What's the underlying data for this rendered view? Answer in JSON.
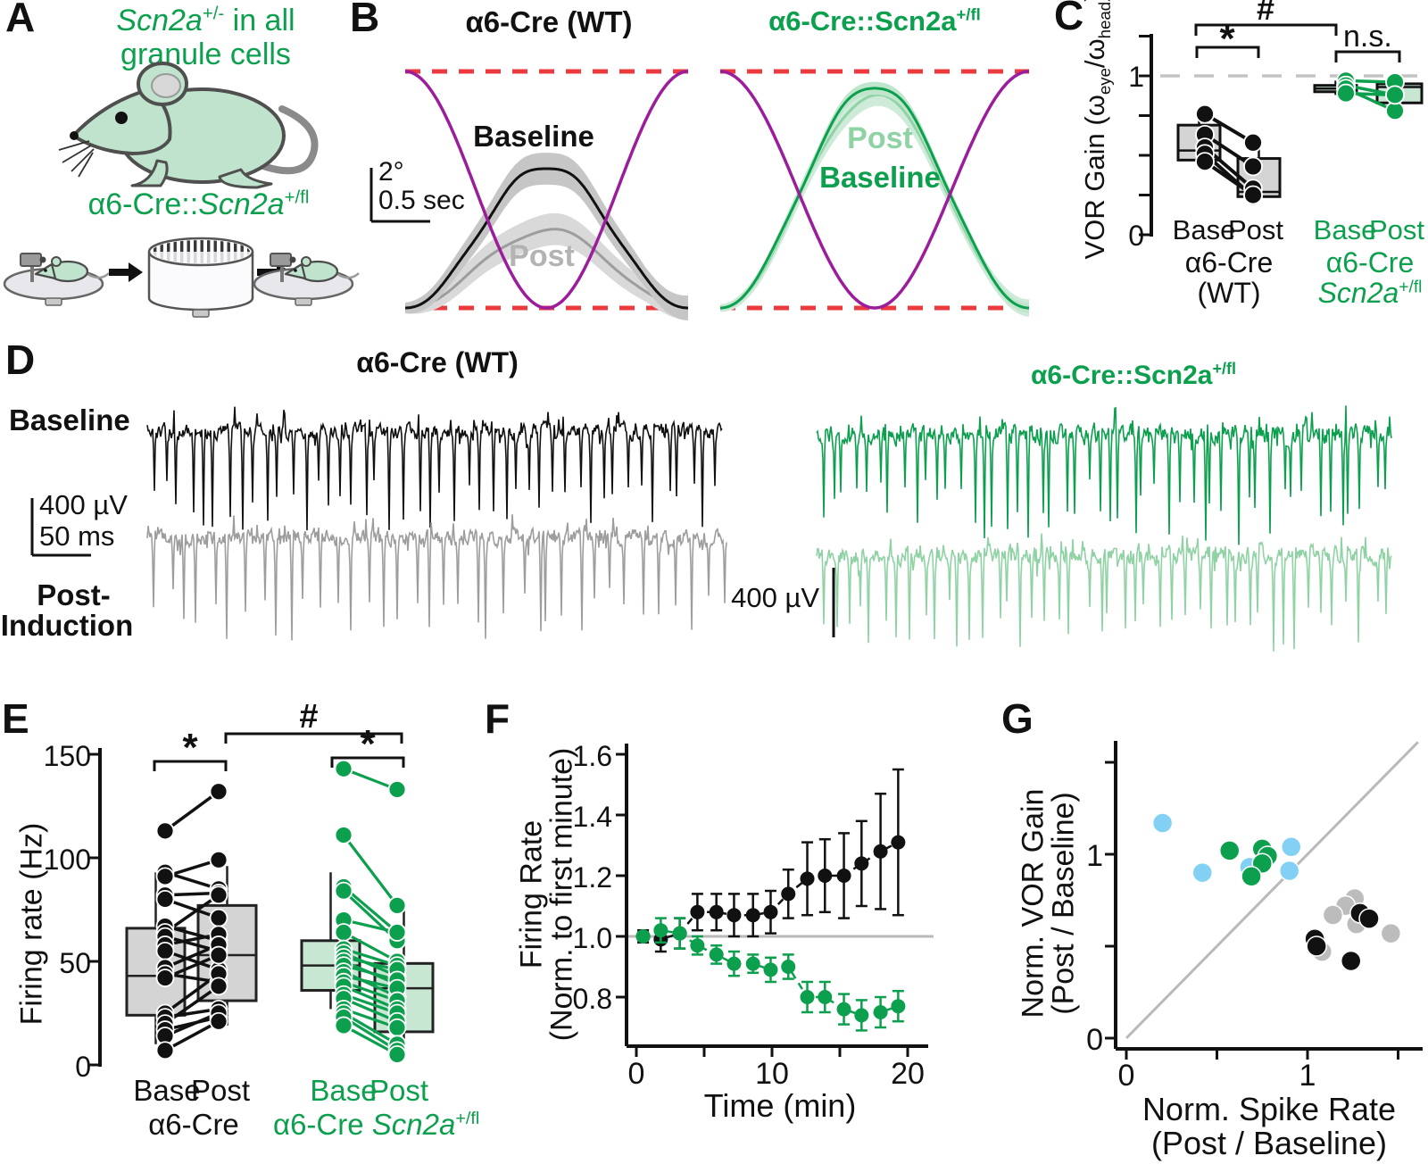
{
  "colors": {
    "green": "#0ca04e",
    "green_light": "#8fd2a4",
    "green_box": "#c7e7d2",
    "black": "#111111",
    "gray_trace": "#9d9d9d",
    "gray_box": "#d4d4d4",
    "gray_dot": "#bcbcbc",
    "purple": "#9c1d9c",
    "red": "#ea3a3e",
    "skyblue": "#82d1f5",
    "ref_gray": "#b9b9b9",
    "dash_gray": "#c3c3c3",
    "post_label_gray": "#b3b3b3"
  },
  "panelA": {
    "label": "A",
    "headline": {
      "gene": "Scn2a",
      "gene_sup": "+/-",
      "rest": " in all",
      "line2": "granule cells"
    },
    "genotype": {
      "pre": "α6-Cre::",
      "gene": "Scn2a",
      "sup": "+/fl"
    }
  },
  "panelB": {
    "label": "B",
    "left_title": "α6-Cre (WT)",
    "right_title_pre": "α6-Cre::Scn2a",
    "right_title_sup": "+/fl",
    "baseline_label": "Baseline",
    "post_label": "Post",
    "right_post_label": "Post",
    "right_baseline_label": "Baseline",
    "scale_y": "2°",
    "scale_x": "0.5 sec"
  },
  "panelC": {
    "label": "C",
    "ylabel_pre": "VOR Gain (ω",
    "ylabel_sub1": "eye",
    "ylabel_mid": "/ω",
    "ylabel_sub2": "head",
    "ylabel_post": ")",
    "ytick_top": "1",
    "ytick_bottom": "0",
    "sig_star": "*",
    "sig_hash": "#",
    "sig_ns": "n.s.",
    "wt_base": "Base",
    "wt_post": "Post",
    "ko_base": "Base",
    "ko_post": "Post",
    "wt_group1": "α6-Cre",
    "wt_group2": "(WT)",
    "ko_group1": "α6-Cre",
    "ko_gene": "Scn2a",
    "ko_sup": "+/fl"
  },
  "panelD": {
    "label": "D",
    "wt_title": "α6-Cre (WT)",
    "ko_title_pre": "α6-Cre::Scn2a",
    "ko_title_sup": "+/fl",
    "row_baseline": "Baseline",
    "row_post1": "Post-",
    "row_post2": "Induction",
    "scale1_v": "400 µV",
    "scale1_h": "50 ms",
    "scale2_v": "400 µV",
    "traces": [
      {
        "name": "wt-baseline",
        "color_key": "black",
        "seed": 7,
        "n_spikes": 46,
        "noise": 7,
        "depth_min": 55,
        "depth_max": 112
      },
      {
        "name": "wt-post",
        "color_key": "gray_trace",
        "seed": 13,
        "n_spikes": 38,
        "noise": 7,
        "depth_min": 55,
        "depth_max": 118
      },
      {
        "name": "ko-baseline",
        "color_key": "green",
        "seed": 21,
        "n_spikes": 50,
        "noise": 9,
        "depth_min": 50,
        "depth_max": 125
      },
      {
        "name": "ko-post",
        "color_key": "green_light",
        "seed": 33,
        "n_spikes": 46,
        "noise": 8,
        "depth_min": 50,
        "depth_max": 108
      }
    ]
  },
  "panelE": {
    "label": "E",
    "ylabel": "Firing rate (Hz)",
    "yticks": [
      "150",
      "100",
      "50",
      "0"
    ],
    "sig_star_wt": "*",
    "sig_hash": "#",
    "sig_star_ko": "*",
    "wt_base": "Base",
    "wt_post": "Post",
    "wt_group": "α6-Cre",
    "ko_base": "Base",
    "ko_post": "Post",
    "ko_group_pre": "α6-Cre ",
    "ko_gene": "Scn2a",
    "ko_sup": "+/fl"
  },
  "panelF": {
    "label": "F",
    "ylabel1": "Firing Rate",
    "ylabel2": "(Norm.  to first minute)",
    "yticks": [
      "1.6",
      "1.4",
      "1.2",
      "1.0",
      "0.8"
    ],
    "xticks": [
      "0",
      "10",
      "20"
    ],
    "xlabel": "Time (min)"
  },
  "panelG": {
    "label": "G",
    "ylabel1": "Norm. VOR Gain",
    "ylabel2": "(Post / Baseline)",
    "ytick_1": "1",
    "ytick_0": "0",
    "xtick_0": "0",
    "xtick_1": "1",
    "xlabel1": "Norm. Spike Rate",
    "xlabel2": "(Post / Baseline)"
  },
  "chart_data": [
    {
      "id": "B_left",
      "panel": "B",
      "type": "line",
      "title": "α6-Cre (WT)",
      "head_trace": {
        "label": "head velocity",
        "color_key": "purple"
      },
      "eye_traces": [
        {
          "label": "Post",
          "rel_amplitude": 0.33,
          "band": 0.05,
          "color_key": "gray_trace",
          "fill": "#d9d9d9"
        },
        {
          "label": "Baseline",
          "rel_amplitude": 0.6,
          "band": 0.05,
          "color_key": "black",
          "fill": "#c6c6c6"
        }
      ],
      "scalebar": {
        "y": "2°",
        "x": "0.5 sec"
      }
    },
    {
      "id": "B_right",
      "panel": "B",
      "type": "line",
      "title": "α6-Cre::Scn2a+/fl",
      "head_trace": {
        "label": "head velocity",
        "color_key": "purple"
      },
      "eye_traces": [
        {
          "label": "Post",
          "rel_amplitude": 0.9,
          "band": 0.035,
          "color_key": "green_light",
          "fill": "#cdebd8"
        },
        {
          "label": "Baseline",
          "rel_amplitude": 0.94,
          "band": 0.02,
          "color_key": "green",
          "fill": "#bfe6cc"
        }
      ]
    },
    {
      "id": "C",
      "panel": "C",
      "type": "paired_box",
      "ylabel": "VOR Gain (ω_eye/ω_head)",
      "yticks": [
        0,
        1
      ],
      "ylim": [
        0,
        1.25
      ],
      "reference_y": 1,
      "groups": [
        {
          "label": "α6-Cre (WT)",
          "columns": [
            "Base",
            "Post"
          ],
          "color_key": "black",
          "box_fill_key": "gray_box",
          "base_box": {
            "lo": 0.43,
            "q1": 0.47,
            "med": 0.53,
            "q3": 0.69,
            "hi": 0.76
          },
          "post_box": {
            "lo": 0.22,
            "q1": 0.24,
            "med": 0.27,
            "q3": 0.48,
            "hi": 0.58
          },
          "pairs": [
            [
              0.76,
              0.58
            ],
            [
              0.63,
              0.43
            ],
            [
              0.55,
              0.29
            ],
            [
              0.51,
              0.24
            ],
            [
              0.46,
              0.25
            ]
          ]
        },
        {
          "label": "α6-Cre Scn2a+/fl",
          "columns": [
            "Base",
            "Post"
          ],
          "color_key": "green",
          "box_fill_key": "green_box",
          "base_box": {
            "lo": 0.88,
            "q1": 0.9,
            "med": 0.92,
            "q3": 0.94,
            "hi": 0.97
          },
          "post_box": {
            "lo": 0.8,
            "q1": 0.83,
            "med": 0.93,
            "q3": 0.95,
            "hi": 0.96
          },
          "pairs": [
            [
              0.97,
              0.96
            ],
            [
              0.94,
              0.88
            ],
            [
              0.92,
              0.78
            ],
            [
              0.89,
              0.88
            ]
          ]
        }
      ],
      "significance": [
        {
          "label": "*",
          "between": "WT Base vs WT Post"
        },
        {
          "label": "#",
          "between": "WT vs Scn2a+/fl"
        },
        {
          "label": "n.s.",
          "between": "Scn2a+/fl Base vs Post"
        }
      ]
    },
    {
      "id": "E",
      "panel": "E",
      "type": "paired_box",
      "ylabel": "Firing rate (Hz)",
      "yticks": [
        0,
        50,
        100,
        150
      ],
      "ylim": [
        0,
        155
      ],
      "groups": [
        {
          "label": "α6-Cre",
          "columns": [
            "Base",
            "Post"
          ],
          "color_key": "black",
          "box_fill_key": "gray_box",
          "base_box": {
            "lo": 10,
            "q1": 24,
            "med": 43,
            "q3": 66,
            "hi": 93
          },
          "post_box": {
            "lo": 19,
            "q1": 31,
            "med": 53,
            "q3": 77,
            "hi": 96
          },
          "pairs": [
            [
              113,
              132
            ],
            [
              93,
              85
            ],
            [
              91,
              99
            ],
            [
              82,
              83
            ],
            [
              80,
              71
            ],
            [
              67,
              60
            ],
            [
              64,
              82
            ],
            [
              62,
              55
            ],
            [
              58,
              63
            ],
            [
              55,
              46
            ],
            [
              47,
              58
            ],
            [
              44,
              40
            ],
            [
              42,
              53
            ],
            [
              25,
              44
            ],
            [
              23,
              27
            ],
            [
              20,
              38
            ],
            [
              17,
              23
            ],
            [
              14,
              25
            ],
            [
              7,
              21
            ]
          ]
        },
        {
          "label": "α6-Cre Scn2a+/fl",
          "columns": [
            "Base",
            "Post"
          ],
          "color_key": "green",
          "box_fill_key": "green_box",
          "base_box": {
            "lo": 27,
            "q1": 36,
            "med": 48,
            "q3": 60,
            "hi": 93
          },
          "post_box": {
            "lo": 4,
            "q1": 16,
            "med": 37,
            "q3": 49,
            "hi": 77
          },
          "pairs": [
            [
              143,
              133
            ],
            [
              111,
              77
            ],
            [
              86,
              64
            ],
            [
              84,
              60
            ],
            [
              70,
              64
            ],
            [
              64,
              50
            ],
            [
              56,
              48
            ],
            [
              54,
              43
            ],
            [
              52,
              46
            ],
            [
              50,
              39
            ],
            [
              48,
              41
            ],
            [
              45,
              33
            ],
            [
              43,
              37
            ],
            [
              40,
              31
            ],
            [
              38,
              27
            ],
            [
              34,
              25
            ],
            [
              32,
              21
            ],
            [
              27,
              18
            ],
            [
              25,
              10
            ],
            [
              23,
              7
            ],
            [
              19,
              5
            ]
          ]
        }
      ],
      "significance": [
        {
          "label": "*",
          "between": "WT Base vs Post"
        },
        {
          "label": "#",
          "between": "WT Post vs Scn2a+/fl Post"
        },
        {
          "label": "*",
          "between": "Scn2a+/fl Base vs Post"
        }
      ]
    },
    {
      "id": "F",
      "panel": "F",
      "type": "line",
      "ylabel": "Firing Rate (Norm. to first minute)",
      "xlabel": "Time (min)",
      "yticks": [
        0.8,
        1.0,
        1.2,
        1.4,
        1.6
      ],
      "xticks": [
        0,
        10,
        20
      ],
      "ylim": [
        0.62,
        1.62
      ],
      "xlim": [
        -0.8,
        20.8
      ],
      "reference_y": 1.0,
      "x": [
        0.5,
        1.8,
        3.2,
        4.5,
        5.9,
        7.2,
        8.6,
        9.9,
        11.2,
        12.6,
        13.9,
        15.3,
        16.6,
        18.0,
        19.3
      ],
      "series": [
        {
          "name": "α6-Cre (WT)",
          "color_key": "black",
          "values": [
            1.0,
            0.99,
            1.01,
            1.08,
            1.08,
            1.07,
            1.07,
            1.08,
            1.14,
            1.19,
            1.2,
            1.2,
            1.24,
            1.28,
            1.31
          ],
          "err": [
            0.02,
            0.04,
            0.05,
            0.06,
            0.06,
            0.07,
            0.07,
            0.07,
            0.08,
            0.12,
            0.12,
            0.14,
            0.14,
            0.19,
            0.24
          ]
        },
        {
          "name": "α6-Cre::Scn2a+/fl",
          "color_key": "green",
          "values": [
            1.0,
            1.02,
            1.01,
            0.97,
            0.94,
            0.91,
            0.91,
            0.89,
            0.9,
            0.8,
            0.8,
            0.76,
            0.74,
            0.75,
            0.77
          ],
          "err": [
            0.01,
            0.04,
            0.05,
            0.03,
            0.03,
            0.04,
            0.03,
            0.04,
            0.04,
            0.05,
            0.05,
            0.05,
            0.05,
            0.05,
            0.05
          ]
        }
      ]
    },
    {
      "id": "G",
      "panel": "G",
      "type": "scatter",
      "ylabel": "Norm. VOR Gain (Post / Baseline)",
      "xlabel": "Norm. Spike Rate (Post / Baseline)",
      "xticks": [
        0,
        1
      ],
      "yticks": [
        0,
        1
      ],
      "xlim": [
        0,
        1.65
      ],
      "ylim": [
        0,
        1.68
      ],
      "unity_line": true,
      "groups": [
        {
          "name": "gray",
          "color_key": "gray_dot",
          "points": [
            [
              1.26,
              0.76
            ],
            [
              1.21,
              0.72
            ],
            [
              1.14,
              0.67
            ],
            [
              1.27,
              0.62
            ],
            [
              1.46,
              0.57
            ],
            [
              1.08,
              0.47
            ]
          ]
        },
        {
          "name": "black",
          "color_key": "black",
          "points": [
            [
              1.29,
              0.68
            ],
            [
              1.34,
              0.65
            ],
            [
              1.04,
              0.54
            ],
            [
              1.05,
              0.5
            ],
            [
              1.24,
              0.42
            ]
          ]
        },
        {
          "name": "blue",
          "color_key": "skyblue",
          "points": [
            [
              0.2,
              1.17
            ],
            [
              0.42,
              0.9
            ],
            [
              0.68,
              0.93
            ],
            [
              0.91,
              1.04
            ],
            [
              0.9,
              0.91
            ]
          ]
        },
        {
          "name": "green",
          "color_key": "green",
          "points": [
            [
              0.57,
              1.02
            ],
            [
              0.75,
              1.03
            ],
            [
              0.78,
              0.99
            ],
            [
              0.75,
              0.95
            ],
            [
              0.69,
              0.88
            ]
          ]
        }
      ]
    }
  ]
}
